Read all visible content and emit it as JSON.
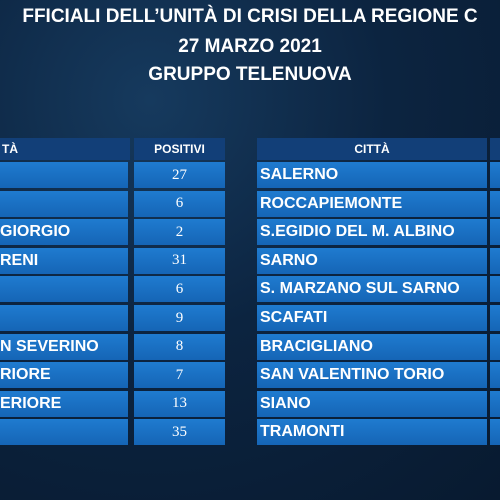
{
  "header": {
    "lines": [
      "FFICIALI DELL’UNITÀ DI CRISI DELLA REGIONE C",
      "27 MARZO 2021",
      "GRUPPO TELENUOVA"
    ]
  },
  "left_table": {
    "headers": [
      "TÀ",
      "POSITIVI"
    ],
    "rows": [
      [
        null,
        27
      ],
      [
        null,
        6
      ],
      [
        "GIORGIO",
        2
      ],
      [
        "RENI",
        31
      ],
      [
        null,
        6
      ],
      [
        null,
        9
      ],
      [
        "N SEVERINO",
        8
      ],
      [
        "RIORE",
        7
      ],
      [
        "ERIORE",
        13
      ],
      [
        null,
        35
      ]
    ]
  },
  "right_table": {
    "headers": [
      "CITTÀ"
    ],
    "rows": [
      [
        "SALERNO"
      ],
      [
        "ROCCAPIEMONTE"
      ],
      [
        "S.EGIDIO DEL M. ALBINO"
      ],
      [
        "SARNO"
      ],
      [
        "S. MARZANO SUL SARNO"
      ],
      [
        "SCAFATI"
      ],
      [
        "BRACIGLIANO"
      ],
      [
        "SAN VALENTINO TORIO"
      ],
      [
        "SIANO"
      ],
      [
        "TRAMONTI"
      ]
    ]
  }
}
